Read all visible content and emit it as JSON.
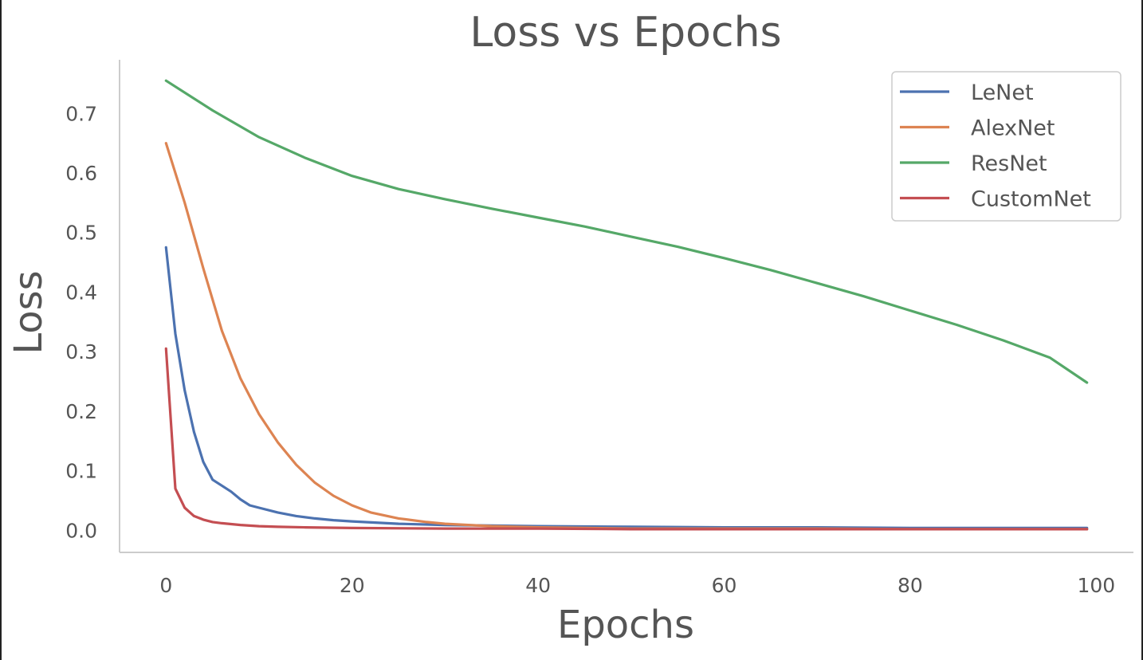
{
  "chart_data": {
    "type": "line",
    "title": "Loss vs Epochs",
    "xlabel": "Epochs",
    "ylabel": "Loss",
    "xlim": [
      -5,
      104
    ],
    "ylim": [
      -0.037,
      0.79
    ],
    "xticks": [
      0,
      20,
      40,
      60,
      80,
      100
    ],
    "yticks": [
      0.0,
      0.1,
      0.2,
      0.3,
      0.4,
      0.5,
      0.6,
      0.7
    ],
    "grid": false,
    "legend": "top-right",
    "series": [
      {
        "name": "LeNet",
        "color": "#4c72b0",
        "x": [
          0,
          1,
          2,
          3,
          4,
          5,
          6,
          7,
          8,
          9,
          10,
          12,
          14,
          16,
          18,
          20,
          25,
          30,
          40,
          50,
          60,
          70,
          80,
          90,
          99
        ],
        "y": [
          0.475,
          0.33,
          0.235,
          0.165,
          0.115,
          0.085,
          0.075,
          0.065,
          0.052,
          0.042,
          0.038,
          0.03,
          0.024,
          0.02,
          0.017,
          0.015,
          0.011,
          0.009,
          0.007,
          0.006,
          0.005,
          0.005,
          0.004,
          0.004,
          0.004
        ]
      },
      {
        "name": "AlexNet",
        "color": "#dd8452",
        "x": [
          0,
          2,
          4,
          6,
          8,
          10,
          12,
          14,
          16,
          18,
          20,
          22,
          25,
          28,
          30,
          35,
          40,
          45,
          50,
          60,
          70,
          80,
          90,
          99
        ],
        "y": [
          0.65,
          0.55,
          0.44,
          0.335,
          0.255,
          0.195,
          0.148,
          0.11,
          0.08,
          0.058,
          0.042,
          0.03,
          0.02,
          0.014,
          0.011,
          0.007,
          0.005,
          0.004,
          0.003,
          0.003,
          0.003,
          0.002,
          0.002,
          0.002
        ]
      },
      {
        "name": "ResNet",
        "color": "#55a868",
        "x": [
          0,
          5,
          10,
          15,
          20,
          25,
          30,
          35,
          40,
          45,
          50,
          55,
          60,
          65,
          70,
          75,
          80,
          85,
          90,
          95,
          99
        ],
        "y": [
          0.755,
          0.705,
          0.66,
          0.625,
          0.595,
          0.573,
          0.556,
          0.54,
          0.525,
          0.51,
          0.493,
          0.476,
          0.457,
          0.437,
          0.415,
          0.393,
          0.369,
          0.345,
          0.319,
          0.29,
          0.248
        ]
      },
      {
        "name": "CustomNet",
        "color": "#c44e52",
        "x": [
          0,
          1,
          2,
          3,
          4,
          5,
          6,
          8,
          10,
          12,
          15,
          20,
          30,
          40,
          50,
          60,
          70,
          80,
          90,
          99
        ],
        "y": [
          0.305,
          0.07,
          0.038,
          0.024,
          0.018,
          0.014,
          0.012,
          0.009,
          0.007,
          0.006,
          0.005,
          0.004,
          0.003,
          0.003,
          0.002,
          0.002,
          0.002,
          0.002,
          0.002,
          0.002
        ]
      }
    ]
  },
  "colors": {
    "axis": "#cccccc",
    "text": "#555555",
    "legend_border": "#cccccc"
  }
}
